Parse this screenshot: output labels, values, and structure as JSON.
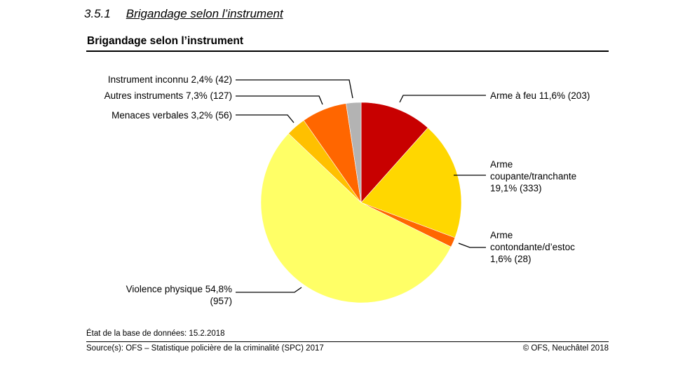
{
  "section": {
    "number": "3.5.1",
    "title": "Brigandage selon l’instrument"
  },
  "chart_data": {
    "type": "pie",
    "title": "Brigandage selon l’instrument",
    "slices": [
      {
        "label_lines": [
          "Arme à feu 11,6% (203)"
        ],
        "percent": 11.6,
        "count": 203,
        "color": "#c80000"
      },
      {
        "label_lines": [
          "Arme",
          "coupante/tranchante",
          "19,1% (333)"
        ],
        "percent": 19.1,
        "count": 333,
        "color": "#ffd700"
      },
      {
        "label_lines": [
          "Arme",
          "contondante/d’estoc",
          "1,6% (28)"
        ],
        "percent": 1.6,
        "count": 28,
        "color": "#ff6600"
      },
      {
        "label_lines": [
          "Violence physique 54,8%",
          "(957)"
        ],
        "percent": 54.8,
        "count": 957,
        "color": "#ffff66"
      },
      {
        "label_lines": [
          "Menaces verbales 3,2% (56)"
        ],
        "percent": 3.2,
        "count": 56,
        "color": "#ffc000"
      },
      {
        "label_lines": [
          "Autres instruments 7,3% (127)"
        ],
        "percent": 7.3,
        "count": 127,
        "color": "#ff6600"
      },
      {
        "label_lines": [
          "Instrument inconnu 2,4% (42)"
        ],
        "percent": 2.4,
        "count": 42,
        "color": "#b3b3b3"
      }
    ]
  },
  "footer": {
    "date": "État de la base de données: 15.2.2018",
    "source": "Source(s): OFS – Statistique policière de la criminalité (SPC) 2017",
    "copyright": "© OFS, Neuchâtel 2018"
  }
}
